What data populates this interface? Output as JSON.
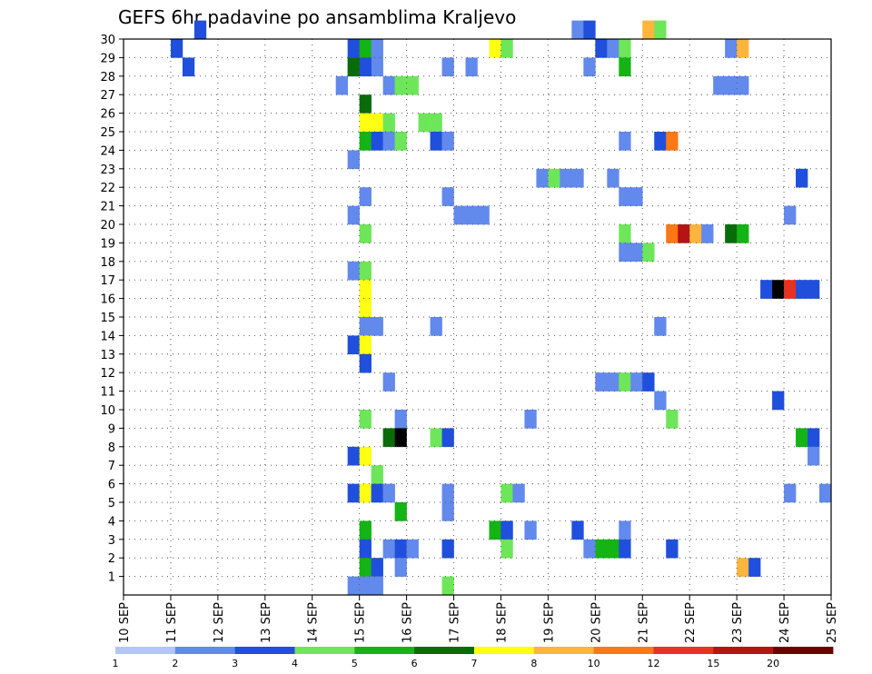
{
  "chart_data": {
    "type": "heatmap",
    "title": "GEFS 6hr padavine po ansamblima Kraljevo",
    "xlabel": "",
    "ylabel": "",
    "x_unit": "days since 10 SEP (6-hourly steps)",
    "x_ticks": [
      "10 SEP",
      "11 SEP",
      "12 SEP",
      "13 SEP",
      "14 SEP",
      "15 SEP",
      "16 SEP",
      "17 SEP",
      "18 SEP",
      "19 SEP",
      "20 SEP",
      "21 SEP",
      "22 SEP",
      "23 SEP",
      "24 SEP",
      "25 SEP"
    ],
    "xlim": [
      0,
      15
    ],
    "y_ticks": [
      "1",
      "2",
      "3",
      "4",
      "5",
      "6",
      "7",
      "8",
      "9",
      "10",
      "11",
      "12",
      "13",
      "14",
      "15",
      "16",
      "17",
      "18",
      "19",
      "20",
      "21",
      "22",
      "23",
      "24",
      "25",
      "26",
      "27",
      "28",
      "29",
      "30"
    ],
    "ylim": [
      0,
      30
    ],
    "grid": true,
    "colorbar": {
      "levels": [
        "1",
        "2",
        "3",
        "4",
        "5",
        "6",
        "7",
        "8",
        "10",
        "12",
        "15",
        "20"
      ],
      "colors": [
        "#b3c6f7",
        "#6289ec",
        "#1f4fdc",
        "#6ee65a",
        "#13b413",
        "#0a6b0a",
        "#ffff14",
        "#ffb43c",
        "#ff7814",
        "#e6321e",
        "#b41414",
        "#6e0000"
      ]
    },
    "cells": [
      [
        1.0,
        29,
        2
      ],
      [
        1.5,
        30,
        2
      ],
      [
        1.25,
        28,
        2
      ],
      [
        4.75,
        29,
        2
      ],
      [
        4.75,
        28,
        1
      ],
      [
        4.5,
        27,
        1
      ],
      [
        5.0,
        29,
        4
      ],
      [
        5.25,
        29,
        1
      ],
      [
        5.25,
        28,
        1
      ],
      [
        5.0,
        28,
        2
      ],
      [
        4.75,
        28,
        5
      ],
      [
        5.5,
        27,
        1
      ],
      [
        5.75,
        27,
        3
      ],
      [
        6.0,
        27,
        3
      ],
      [
        5.0,
        26,
        5
      ],
      [
        5.0,
        25,
        6
      ],
      [
        5.25,
        25,
        6
      ],
      [
        5.5,
        25,
        3
      ],
      [
        6.25,
        25,
        3
      ],
      [
        6.5,
        25,
        3
      ],
      [
        5.0,
        24,
        4
      ],
      [
        5.25,
        24,
        2
      ],
      [
        5.5,
        24,
        1
      ],
      [
        5.75,
        24,
        3
      ],
      [
        6.5,
        24,
        2
      ],
      [
        6.75,
        24,
        1
      ],
      [
        4.75,
        23,
        1
      ],
      [
        5.0,
        21,
        1
      ],
      [
        6.75,
        21,
        1
      ],
      [
        4.75,
        20,
        1
      ],
      [
        7.0,
        20,
        1
      ],
      [
        7.25,
        20,
        1
      ],
      [
        7.5,
        20,
        1
      ],
      [
        5.0,
        19,
        3
      ],
      [
        4.75,
        17,
        1
      ],
      [
        5.0,
        17,
        3
      ],
      [
        5.0,
        16,
        6
      ],
      [
        5.0,
        15,
        6
      ],
      [
        5.0,
        14,
        1
      ],
      [
        5.25,
        14,
        1
      ],
      [
        6.5,
        14,
        1
      ],
      [
        4.75,
        13,
        2
      ],
      [
        5.0,
        13,
        6
      ],
      [
        5.0,
        12,
        2
      ],
      [
        5.5,
        11,
        1
      ],
      [
        5.0,
        9,
        3
      ],
      [
        5.75,
        9,
        1
      ],
      [
        5.5,
        8,
        5
      ],
      [
        5.75,
        8,
        12
      ],
      [
        6.5,
        8,
        3
      ],
      [
        6.75,
        8,
        2
      ],
      [
        4.75,
        7,
        2
      ],
      [
        5.0,
        7,
        6
      ],
      [
        5.25,
        6,
        3
      ],
      [
        4.75,
        5,
        2
      ],
      [
        5.0,
        5,
        6
      ],
      [
        5.25,
        5,
        2
      ],
      [
        5.5,
        5,
        1
      ],
      [
        5.75,
        4,
        4
      ],
      [
        6.75,
        4,
        1
      ],
      [
        5.0,
        3,
        4
      ],
      [
        5.0,
        2,
        2
      ],
      [
        5.0,
        1,
        4
      ],
      [
        5.25,
        1,
        2
      ],
      [
        5.5,
        2,
        1
      ],
      [
        5.75,
        2,
        2
      ],
      [
        6.0,
        2,
        1
      ],
      [
        5.75,
        1,
        1
      ],
      [
        4.75,
        0,
        1
      ],
      [
        5.0,
        0,
        1
      ],
      [
        5.25,
        0,
        1
      ],
      [
        6.75,
        0,
        3
      ],
      [
        6.75,
        2,
        2
      ],
      [
        6.75,
        5,
        1
      ],
      [
        7.75,
        29,
        6
      ],
      [
        8.0,
        29,
        3
      ],
      [
        7.25,
        28,
        1
      ],
      [
        6.75,
        28,
        1
      ],
      [
        7.75,
        3,
        4
      ],
      [
        8.0,
        3,
        2
      ],
      [
        8.0,
        2,
        3
      ],
      [
        8.0,
        5,
        3
      ],
      [
        8.25,
        5,
        1
      ],
      [
        8.5,
        3,
        1
      ],
      [
        8.5,
        9,
        1
      ],
      [
        8.75,
        22,
        1
      ],
      [
        9.0,
        22,
        3
      ],
      [
        9.25,
        22,
        1
      ],
      [
        9.5,
        22,
        1
      ],
      [
        9.5,
        30,
        1
      ],
      [
        9.75,
        30,
        2
      ],
      [
        10.0,
        29,
        2
      ],
      [
        10.25,
        29,
        1
      ],
      [
        10.5,
        29,
        3
      ],
      [
        9.75,
        28,
        1
      ],
      [
        10.5,
        28,
        4
      ],
      [
        10.5,
        24,
        1
      ],
      [
        10.25,
        22,
        1
      ],
      [
        10.5,
        21,
        1
      ],
      [
        10.75,
        21,
        1
      ],
      [
        10.5,
        19,
        3
      ],
      [
        10.5,
        18,
        1
      ],
      [
        10.75,
        18,
        1
      ],
      [
        11.0,
        18,
        3
      ],
      [
        10.0,
        11,
        1
      ],
      [
        10.25,
        11,
        1
      ],
      [
        10.5,
        11,
        3
      ],
      [
        10.75,
        11,
        1
      ],
      [
        11.0,
        11,
        2
      ],
      [
        10.0,
        2,
        4
      ],
      [
        10.25,
        2,
        4
      ],
      [
        10.5,
        2,
        2
      ],
      [
        9.75,
        2,
        1
      ],
      [
        10.5,
        3,
        1
      ],
      [
        9.5,
        3,
        2
      ],
      [
        11.0,
        30,
        7
      ],
      [
        11.25,
        30,
        3
      ],
      [
        11.25,
        24,
        2
      ],
      [
        11.5,
        24,
        8
      ],
      [
        11.25,
        14,
        1
      ],
      [
        11.25,
        10,
        1
      ],
      [
        11.5,
        9,
        3
      ],
      [
        11.5,
        2,
        2
      ],
      [
        11.5,
        19,
        8
      ],
      [
        11.75,
        19,
        10
      ],
      [
        12.0,
        19,
        7
      ],
      [
        12.25,
        19,
        1
      ],
      [
        12.5,
        27,
        1
      ],
      [
        12.75,
        27,
        1
      ],
      [
        13.0,
        27,
        1
      ],
      [
        12.75,
        29,
        1
      ],
      [
        13.0,
        29,
        7
      ],
      [
        12.75,
        19,
        5
      ],
      [
        13.0,
        19,
        4
      ],
      [
        13.0,
        1,
        7
      ],
      [
        13.25,
        1,
        2
      ],
      [
        13.5,
        16,
        2
      ],
      [
        13.75,
        16,
        12
      ],
      [
        14.0,
        16,
        9
      ],
      [
        14.25,
        16,
        2
      ],
      [
        14.5,
        16,
        2
      ],
      [
        13.75,
        10,
        2
      ],
      [
        14.0,
        20,
        1
      ],
      [
        14.25,
        22,
        2
      ],
      [
        14.25,
        8,
        4
      ],
      [
        14.5,
        8,
        2
      ],
      [
        14.5,
        7,
        1
      ],
      [
        14.0,
        5,
        1
      ],
      [
        14.75,
        5,
        1
      ]
    ]
  }
}
